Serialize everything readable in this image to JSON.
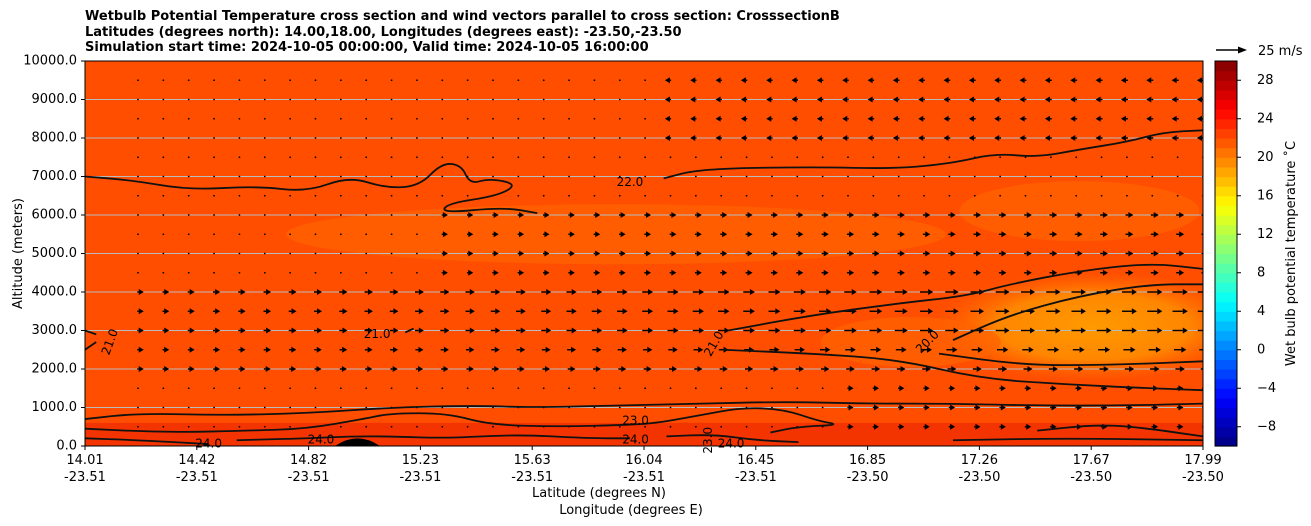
{
  "title_lines": [
    "Wetbulb Potential Temperature cross section and wind vectors parallel to cross section: CrosssectionB",
    "Latitudes (degrees north): 14.00,18.00, Longitudes (degrees east): -23.50,-23.50",
    "Simulation start time: 2024-10-05 00:00:00, Valid time: 2024-10-05 16:00:00"
  ],
  "chart_data": {
    "type": "contour",
    "title": "Wetbulb Potential Temperature cross section and wind vectors parallel to cross section: CrosssectionB",
    "xlabel": "Latitude (degrees N)",
    "xlabel2": "Longitude (degrees E)",
    "ylabel": "Altitude (meters)",
    "ylim": [
      0,
      10000
    ],
    "xlim": [
      14.01,
      17.99
    ],
    "grid": "horizontal",
    "y_ticks": [
      0,
      1000,
      2000,
      3000,
      4000,
      5000,
      6000,
      7000,
      8000,
      9000,
      10000
    ],
    "y_tick_labels": [
      "0.0",
      "1000.0",
      "2000.0",
      "3000.0",
      "4000.0",
      "5000.0",
      "6000.0",
      "7000.0",
      "8000.0",
      "9000.0",
      "10000.0"
    ],
    "x_ticks": [
      {
        "lat": "14.01",
        "lon": "-23.51"
      },
      {
        "lat": "14.42",
        "lon": "-23.51"
      },
      {
        "lat": "14.82",
        "lon": "-23.51"
      },
      {
        "lat": "15.23",
        "lon": "-23.51"
      },
      {
        "lat": "15.63",
        "lon": "-23.51"
      },
      {
        "lat": "16.04",
        "lon": "-23.51"
      },
      {
        "lat": "16.45",
        "lon": "-23.51"
      },
      {
        "lat": "16.85",
        "lon": "-23.50"
      },
      {
        "lat": "17.26",
        "lon": "-23.50"
      },
      {
        "lat": "17.67",
        "lon": "-23.50"
      },
      {
        "lat": "17.99",
        "lon": "-23.50"
      }
    ],
    "contour_labels": [
      {
        "text": "22.0",
        "x": 15.95,
        "y": 6850
      },
      {
        "text": "21.0",
        "x": 15.05,
        "y": 2900
      },
      {
        "text": "21.0",
        "x": 14.1,
        "y": 2700,
        "rotate": -70
      },
      {
        "text": "21.0",
        "x": 16.25,
        "y": 2650,
        "rotate": -60
      },
      {
        "text": "20.0",
        "x": 17.01,
        "y": 2700,
        "rotate": -45
      },
      {
        "text": "23.0",
        "x": 15.97,
        "y": 650
      },
      {
        "text": "24.0",
        "x": 15.97,
        "y": 150
      },
      {
        "text": "24.0",
        "x": 16.31,
        "y": 50
      },
      {
        "text": "24.0",
        "x": 14.85,
        "y": 150
      },
      {
        "text": "24.0",
        "x": 14.45,
        "y": 50
      },
      {
        "text": "23.0",
        "x": 16.23,
        "y": 150,
        "rotate": -90
      }
    ],
    "contour_levels": [
      {
        "level": 22.0,
        "points": [
          [
            14.01,
            7000
          ],
          [
            14.18,
            6900
          ],
          [
            14.38,
            6650
          ],
          [
            14.62,
            6750
          ],
          [
            14.8,
            6600
          ],
          [
            14.95,
            7000
          ],
          [
            15.08,
            6700
          ],
          [
            15.2,
            6750
          ],
          [
            15.28,
            7350
          ],
          [
            15.35,
            7300
          ],
          [
            15.38,
            6800
          ],
          [
            15.45,
            6950
          ],
          [
            15.55,
            6800
          ],
          [
            15.48,
            6500
          ],
          [
            15.3,
            6300
          ],
          [
            15.28,
            6050
          ],
          [
            15.5,
            6200
          ],
          [
            15.62,
            6050
          ]
        ]
      },
      {
        "level": 22.0,
        "points": [
          [
            16.07,
            6950
          ],
          [
            16.2,
            7200
          ],
          [
            16.6,
            7250
          ],
          [
            16.9,
            7200
          ],
          [
            17.1,
            7350
          ],
          [
            17.25,
            7600
          ],
          [
            17.4,
            7500
          ],
          [
            17.55,
            7700
          ],
          [
            17.72,
            7900
          ],
          [
            17.85,
            8150
          ],
          [
            17.99,
            8200
          ]
        ]
      },
      {
        "level": 21.0,
        "points": [
          [
            14.01,
            3000
          ],
          [
            14.05,
            2900
          ]
        ]
      },
      {
        "level": 21.0,
        "points": [
          [
            14.01,
            2500
          ],
          [
            14.05,
            2700
          ]
        ]
      },
      {
        "level": 21.0,
        "points": [
          [
            15.15,
            2950
          ],
          [
            15.18,
            3050
          ]
        ]
      },
      {
        "level": 21.0,
        "points": [
          [
            16.3,
            3000
          ],
          [
            16.6,
            3400
          ],
          [
            16.9,
            3700
          ],
          [
            17.15,
            3900
          ],
          [
            17.3,
            4200
          ],
          [
            17.55,
            4550
          ],
          [
            17.8,
            4750
          ],
          [
            17.99,
            4600
          ]
        ]
      },
      {
        "level": 20.0,
        "points": [
          [
            17.1,
            2750
          ],
          [
            17.3,
            3400
          ],
          [
            17.55,
            3900
          ],
          [
            17.8,
            4200
          ],
          [
            17.99,
            4200
          ]
        ]
      },
      {
        "level": 20.0,
        "points": [
          [
            17.05,
            2400
          ],
          [
            17.35,
            2100
          ],
          [
            17.65,
            2100
          ],
          [
            17.99,
            2200
          ]
        ]
      },
      {
        "level": 21.0,
        "points": [
          [
            16.28,
            2500
          ],
          [
            16.6,
            2400
          ],
          [
            16.9,
            2250
          ],
          [
            17.2,
            1750
          ],
          [
            17.5,
            1600
          ],
          [
            17.8,
            1500
          ],
          [
            17.99,
            1450
          ]
        ]
      },
      {
        "level": 22.0,
        "points": [
          [
            14.01,
            700
          ],
          [
            14.2,
            850
          ],
          [
            14.5,
            800
          ],
          [
            14.8,
            850
          ],
          [
            15.1,
            1000
          ],
          [
            15.4,
            1050
          ],
          [
            15.6,
            1000
          ],
          [
            15.9,
            1050
          ],
          [
            16.2,
            1100
          ],
          [
            16.5,
            1150
          ],
          [
            16.8,
            1100
          ],
          [
            17.1,
            1100
          ],
          [
            17.4,
            1050
          ],
          [
            17.7,
            1050
          ],
          [
            17.99,
            1100
          ]
        ]
      },
      {
        "level": 23.0,
        "points": [
          [
            14.01,
            450
          ],
          [
            14.3,
            350
          ],
          [
            14.6,
            400
          ],
          [
            14.8,
            450
          ],
          [
            15.0,
            700
          ],
          [
            15.1,
            850
          ],
          [
            15.3,
            850
          ],
          [
            15.45,
            550
          ],
          [
            15.7,
            500
          ],
          [
            15.95,
            550
          ],
          [
            16.05,
            600
          ],
          [
            16.2,
            800
          ],
          [
            16.35,
            1000
          ],
          [
            16.5,
            950
          ],
          [
            16.62,
            650
          ],
          [
            16.7,
            550
          ],
          [
            16.55,
            500
          ],
          [
            16.45,
            350
          ]
        ]
      },
      {
        "level": 23.0,
        "points": [
          [
            17.4,
            400
          ],
          [
            17.6,
            550
          ],
          [
            17.75,
            500
          ],
          [
            17.99,
            250
          ]
        ]
      },
      {
        "level": 24.0,
        "points": [
          [
            14.01,
            200
          ],
          [
            14.2,
            150
          ],
          [
            14.45,
            50
          ]
        ]
      },
      {
        "level": 24.0,
        "points": [
          [
            14.55,
            150
          ],
          [
            14.8,
            200
          ],
          [
            14.95,
            250
          ],
          [
            15.1,
            250
          ],
          [
            15.3,
            200
          ],
          [
            15.55,
            300
          ],
          [
            15.8,
            200
          ],
          [
            15.95,
            200
          ]
        ]
      },
      {
        "level": 24.0,
        "points": [
          [
            16.08,
            250
          ],
          [
            16.25,
            300
          ],
          [
            16.4,
            150
          ],
          [
            16.55,
            100
          ]
        ]
      },
      {
        "level": 24.0,
        "points": [
          [
            17.1,
            150
          ],
          [
            17.5,
            200
          ],
          [
            17.99,
            150
          ]
        ]
      }
    ],
    "terrain": {
      "center_lat": 14.98,
      "half_width_lat": 0.08,
      "peak_m": 220
    },
    "colorbar": {
      "label": "Wet bulb potential temperature ˚C",
      "vmin": -10,
      "vmax": 30,
      "ticks": [
        -8,
        -4,
        0,
        4,
        8,
        12,
        16,
        20,
        24,
        28
      ],
      "tick_labels": [
        "−8",
        "−4",
        "0",
        "4",
        "8",
        "12",
        "16",
        "20",
        "24",
        "28"
      ]
    },
    "vector_key": {
      "label": "25 m/s",
      "speed": 25
    }
  },
  "colors": {
    "field_base": "#FF4E00",
    "field_warm_band": "#FF6400",
    "field_cool_core": "#FF8A00",
    "field_surface": "#F23000",
    "contour": "#111111",
    "grid": "#bbbbbb"
  }
}
